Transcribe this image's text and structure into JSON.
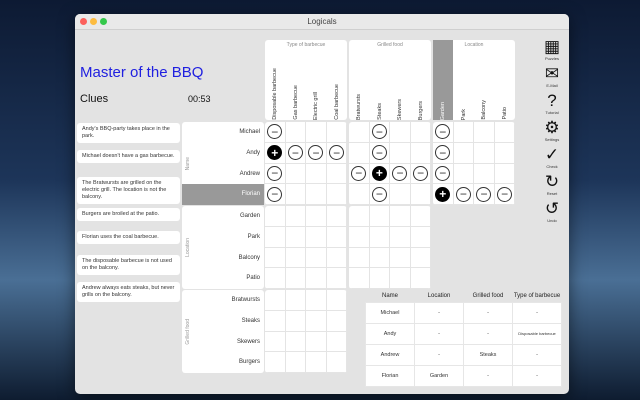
{
  "window": {
    "title": "Logicals"
  },
  "title": "Master of the BBQ",
  "clues_heading": "Clues",
  "timer": "00:53",
  "clues": [
    "Andy's BBQ-party takes place in the park.",
    "Michael doesn't have a gas barbecue.",
    "The Bratwursts are grilled on the electric grill. The location is not the balcony.",
    "Burgers are broiled at the patio.",
    "Florian uses the coal barbecue.",
    "The disposable barbecue is not used on the balcony.",
    "Andrew always eats steaks, but never grills on the balcony."
  ],
  "col_groups": [
    {
      "label": "Type of barbecue",
      "items": [
        "Disposable barbecue",
        "Gas barbecue",
        "Electric grill",
        "Coal barbecue"
      ]
    },
    {
      "label": "Grilled food",
      "items": [
        "Bratwursts",
        "Steaks",
        "Skewers",
        "Burgers"
      ]
    },
    {
      "label": "Location",
      "items": [
        "Garden",
        "Park",
        "Balcony",
        "Patio"
      ]
    }
  ],
  "row_groups": [
    {
      "label": "Name",
      "items": [
        "Michael",
        "Andy",
        "Andrew",
        "Florian"
      ]
    },
    {
      "label": "Location",
      "items": [
        "Garden",
        "Park",
        "Balcony",
        "Patio"
      ]
    },
    {
      "label": "Grilled food",
      "items": [
        "Bratwursts",
        "Steaks",
        "Skewers",
        "Burgers"
      ]
    }
  ],
  "highlight": {
    "row": "Florian",
    "column": "Garden",
    "color": "#999999"
  },
  "grid_marks": [
    [
      "-",
      "",
      "",
      "",
      "",
      "-",
      "",
      "",
      "-",
      "",
      "",
      ""
    ],
    [
      "+",
      "-",
      "-",
      "-",
      "",
      "-",
      "",
      "",
      "-",
      "",
      "",
      ""
    ],
    [
      "-",
      "",
      "",
      "",
      "-",
      "+",
      "-",
      "-",
      "-",
      "",
      "",
      ""
    ],
    [
      "-",
      "",
      "",
      "",
      "",
      "-",
      "",
      "",
      "+",
      "-",
      "-",
      "-"
    ]
  ],
  "toolbar": [
    {
      "label": "Puzzles",
      "icon": "grid-icon",
      "glyph": "▦"
    },
    {
      "label": "E-Mail",
      "icon": "mail-icon",
      "glyph": "✉"
    },
    {
      "label": "Tutorial",
      "icon": "help-icon",
      "glyph": "?"
    },
    {
      "label": "Settings",
      "icon": "gear-icon",
      "glyph": "⚙"
    },
    {
      "label": "Check",
      "icon": "check-icon",
      "glyph": "✓"
    },
    {
      "label": "Reset",
      "icon": "reset-icon",
      "glyph": "↻"
    },
    {
      "label": "Undo",
      "icon": "undo-icon",
      "glyph": "↺"
    }
  ],
  "results": {
    "headers": [
      "Name",
      "Location",
      "Grilled food",
      "Type of barbecue"
    ],
    "rows": [
      [
        "Michael",
        "-",
        "-",
        "-"
      ],
      [
        "Andy",
        "-",
        "-",
        "Disposable barbecue"
      ],
      [
        "Andrew",
        "-",
        "Steaks",
        "-"
      ],
      [
        "Florian",
        "Garden",
        "-",
        "-"
      ]
    ]
  }
}
